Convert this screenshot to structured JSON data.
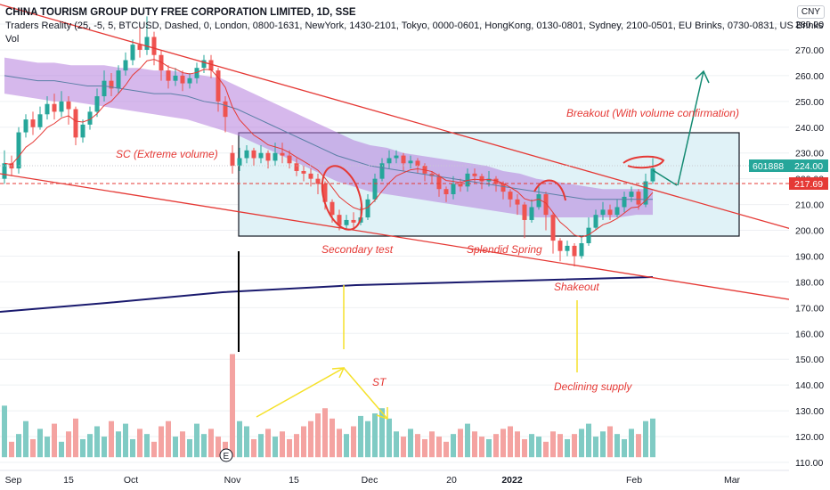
{
  "header": {
    "title": "CHINA TOURISM GROUP DUTY FREE CORPORATION LIMITED, 1D, SSE",
    "indicator": "Traders Reality (25, -5, 5, BTCUSD, Dashed, 0, London, 0800-1631, NewYork, 1430-2101, Tokyo, 0000-0601, HongKong, 0130-0801, Sydney, 2100-0501, EU Brinks, 0730-0831, US Brinks",
    "volume_label": "Vol",
    "currency": "CNY"
  },
  "chart_data": {
    "type": "candlestick",
    "price_axis": {
      "ticks": [
        110,
        120,
        130,
        140,
        150,
        160,
        170,
        180,
        190,
        200,
        210,
        220,
        230,
        240,
        250,
        260,
        270,
        280
      ],
      "ylim": [
        105,
        284
      ]
    },
    "time_axis": {
      "labels": [
        "Sep",
        "15",
        "Oct",
        "Nov",
        "15",
        "Dec",
        "20",
        "2022",
        "Feb",
        "Mar"
      ]
    },
    "last_price_tag": {
      "symbol": "601888",
      "value": "224.00"
    },
    "reference_tag": {
      "value": "217.69"
    },
    "colors": {
      "up": "#26a69a",
      "down": "#ef5350",
      "upVol": "#80cbc4",
      "downVol": "#f4a3a1",
      "cloud": "#b57edc",
      "box": "#e0f2f7",
      "ema": "#e53935",
      "ma": "#5b7fa6",
      "sma": "#1a1a6e",
      "trend": "#e53935",
      "yellow": "#f5e12a",
      "arrow": "#138a72"
    },
    "annotations": {
      "sc": "SC (Extreme volume)",
      "secondary_test": "Secondary test",
      "splendid_spring": "Splendid Spring",
      "shakeout": "Shakeout",
      "breakout": "Breakout (With volume confirmation)",
      "st": "ST",
      "declining_supply": "Declining supply",
      "e_badge": "E"
    },
    "candles": [
      [
        220,
        226,
        231,
        218
      ],
      [
        226,
        224,
        229,
        221
      ],
      [
        224,
        238,
        240,
        222
      ],
      [
        238,
        243,
        245,
        236
      ],
      [
        243,
        240,
        246,
        237
      ],
      [
        240,
        245,
        248,
        239
      ],
      [
        245,
        249,
        252,
        243
      ],
      [
        249,
        246,
        253,
        243
      ],
      [
        246,
        250,
        254,
        244
      ],
      [
        250,
        247,
        252,
        241
      ],
      [
        247,
        236,
        248,
        233
      ],
      [
        236,
        241,
        243,
        234
      ],
      [
        241,
        246,
        248,
        239
      ],
      [
        246,
        252,
        255,
        244
      ],
      [
        252,
        258,
        262,
        250
      ],
      [
        258,
        255,
        261,
        252
      ],
      [
        255,
        262,
        264,
        253
      ],
      [
        262,
        266,
        269,
        260
      ],
      [
        266,
        272,
        274,
        264
      ],
      [
        272,
        270,
        279,
        267
      ],
      [
        270,
        275,
        283,
        268
      ],
      [
        275,
        268,
        277,
        264
      ],
      [
        268,
        262,
        270,
        258
      ],
      [
        262,
        258,
        264,
        255
      ],
      [
        258,
        260,
        263,
        256
      ],
      [
        260,
        257,
        262,
        254
      ],
      [
        257,
        259,
        261,
        255
      ],
      [
        259,
        263,
        265,
        257
      ],
      [
        263,
        266,
        268,
        261
      ],
      [
        266,
        262,
        268,
        259
      ],
      [
        262,
        250,
        263,
        246
      ],
      [
        250,
        244,
        252,
        238
      ],
      [
        230,
        225,
        233,
        222
      ],
      [
        225,
        228,
        232,
        223
      ],
      [
        228,
        231,
        233,
        226
      ],
      [
        231,
        228,
        232,
        225
      ],
      [
        228,
        230,
        233,
        226
      ],
      [
        230,
        227,
        231,
        224
      ],
      [
        227,
        230,
        234,
        225
      ],
      [
        230,
        229,
        234,
        226
      ],
      [
        229,
        226,
        231,
        224
      ],
      [
        226,
        223,
        228,
        221
      ],
      [
        223,
        222,
        225,
        219
      ],
      [
        222,
        220,
        224,
        217
      ],
      [
        220,
        218,
        222,
        214
      ],
      [
        218,
        211,
        219,
        208
      ],
      [
        211,
        206,
        212,
        203
      ],
      [
        206,
        202,
        208,
        200
      ],
      [
        202,
        204,
        206,
        200
      ],
      [
        204,
        203,
        207,
        201
      ],
      [
        203,
        205,
        209,
        202
      ],
      [
        205,
        212,
        214,
        204
      ],
      [
        212,
        220,
        222,
        211
      ],
      [
        220,
        226,
        228,
        219
      ],
      [
        226,
        228,
        231,
        224
      ],
      [
        228,
        229,
        231,
        226
      ],
      [
        229,
        226,
        230,
        223
      ],
      [
        226,
        227,
        229,
        224
      ],
      [
        227,
        225,
        228,
        222
      ],
      [
        225,
        222,
        226,
        219
      ],
      [
        222,
        221,
        223,
        218
      ],
      [
        221,
        216,
        222,
        213
      ],
      [
        216,
        214,
        217,
        211
      ],
      [
        214,
        218,
        221,
        212
      ],
      [
        218,
        217,
        220,
        215
      ],
      [
        217,
        222,
        224,
        215
      ],
      [
        222,
        221,
        224,
        218
      ],
      [
        221,
        219,
        222,
        216
      ],
      [
        219,
        220,
        223,
        217
      ],
      [
        220,
        218,
        221,
        215
      ],
      [
        218,
        215,
        219,
        212
      ],
      [
        215,
        212,
        216,
        209
      ],
      [
        212,
        210,
        214,
        206
      ],
      [
        210,
        204,
        211,
        197
      ],
      [
        204,
        209,
        212,
        203
      ],
      [
        209,
        214,
        217,
        208
      ],
      [
        214,
        206,
        215,
        200
      ],
      [
        206,
        196,
        207,
        191
      ],
      [
        196,
        192,
        197,
        188
      ],
      [
        192,
        194,
        196,
        190
      ],
      [
        194,
        190,
        195,
        186
      ],
      [
        190,
        195,
        198,
        189
      ],
      [
        195,
        201,
        205,
        194
      ],
      [
        201,
        206,
        208,
        200
      ],
      [
        206,
        208,
        211,
        204
      ],
      [
        208,
        206,
        210,
        204
      ],
      [
        206,
        209,
        212,
        205
      ],
      [
        209,
        213,
        215,
        207
      ],
      [
        213,
        215,
        217,
        211
      ],
      [
        215,
        210,
        216,
        208
      ],
      [
        210,
        219,
        222,
        209
      ],
      [
        219,
        224,
        228,
        218
      ]
    ],
    "volumes": [
      132,
      118,
      121,
      126,
      119,
      123,
      120,
      125,
      118,
      122,
      127,
      119,
      121,
      124,
      120,
      126,
      122,
      125,
      119,
      123,
      121,
      118,
      124,
      126,
      120,
      122,
      119,
      125,
      121,
      123,
      120,
      118,
      152,
      126,
      124,
      119,
      121,
      123,
      120,
      122,
      119,
      121,
      124,
      126,
      129,
      131,
      127,
      123,
      121,
      124,
      128,
      126,
      129,
      131,
      127,
      122,
      120,
      123,
      121,
      119,
      122,
      120,
      118,
      121,
      123,
      125,
      122,
      120,
      119,
      121,
      123,
      124,
      122,
      119,
      121,
      120,
      118,
      122,
      121,
      119,
      121,
      123,
      125,
      120,
      122,
      124,
      121,
      119,
      123,
      121,
      126,
      127
    ],
    "cloud_upper": [
      267,
      266,
      265,
      265,
      264,
      264,
      264,
      263,
      263,
      262,
      262,
      261,
      260,
      259,
      256,
      253,
      250,
      247,
      244,
      241,
      238,
      235,
      233,
      232,
      230,
      229,
      228,
      227,
      226,
      225,
      223,
      222,
      220,
      219,
      218,
      217,
      216,
      216,
      216,
      216
    ],
    "cloud_lower": [
      253,
      252,
      251,
      250,
      250,
      249,
      248,
      247,
      246,
      245,
      244,
      243,
      241,
      239,
      237,
      234,
      231,
      228,
      225,
      222,
      219,
      217,
      215,
      214,
      213,
      212,
      211,
      210,
      209,
      208,
      207,
      206,
      205,
      205,
      205,
      205,
      205,
      205,
      206,
      206
    ],
    "ma_line": [
      260,
      259,
      258,
      258,
      257,
      256,
      256,
      255,
      254,
      253,
      253,
      252,
      250,
      249,
      247,
      244,
      241,
      238,
      235,
      232,
      229,
      227,
      225,
      224,
      223,
      222,
      221,
      220,
      219,
      218,
      217,
      216,
      215,
      214,
      213,
      212,
      212,
      212,
      212,
      212
    ]
  }
}
